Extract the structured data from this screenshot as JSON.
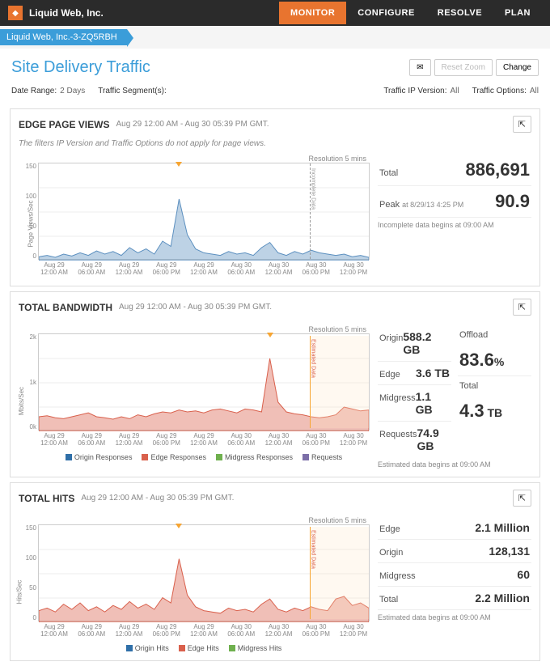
{
  "header": {
    "company": "Liquid Web, Inc.",
    "nav": [
      {
        "label": "MONITOR",
        "active": true
      },
      {
        "label": "CONFIGURE",
        "active": false
      },
      {
        "label": "RESOLVE",
        "active": false
      },
      {
        "label": "PLAN",
        "active": false
      }
    ]
  },
  "breadcrumb": "Liquid Web, Inc.-3-ZQ5RBH",
  "page": {
    "title": "Site Delivery Traffic",
    "buttons": {
      "mail": "✉",
      "reset": "Reset Zoom",
      "change": "Change"
    }
  },
  "filters": {
    "date_range_label": "Date Range:",
    "date_range": "2 Days",
    "segments_label": "Traffic Segment(s):",
    "segments": "",
    "ip_label": "Traffic IP Version:",
    "ip": "All",
    "opts_label": "Traffic Options:",
    "opts": "All"
  },
  "colors": {
    "accent": "#e8742f",
    "link": "#3b9dd9",
    "origin": "#2f6fa8",
    "edge": "#d9604c",
    "midgress": "#6fb04e",
    "requests": "#7c6fa8",
    "area_fill": "#d9604c",
    "area_fill_light": "rgba(217,96,76,0.35)",
    "pv_fill": "#5b8fbf",
    "grid": "#e5e5e5"
  },
  "panels": {
    "pv": {
      "title": "EDGE PAGE VIEWS",
      "range": "Aug 29 12:00 AM - Aug 30 05:39 PM GMT.",
      "note_pre": "The filters ",
      "note_em1": "IP Version",
      "note_mid": " and ",
      "note_em2": "Traffic Options",
      "note_post": " do not apply for page views.",
      "resolution": "Resolution 5 mins",
      "axis_y": "Page Views/Sec",
      "ylim": [
        0,
        150
      ],
      "yticks": [
        0,
        50,
        100,
        150
      ],
      "incomplete_label": "Incomplete Data",
      "stats": {
        "total_l": "Total",
        "total_v": "886,691",
        "peak_l": "Peak",
        "peak_at": "at 8/29/13 4:25 PM",
        "peak_v": "90.9",
        "note": "Incomplete data begins at 09:00 AM"
      },
      "series": [
        6,
        8,
        5,
        10,
        7,
        12,
        8,
        15,
        10,
        14,
        8,
        20,
        12,
        18,
        10,
        30,
        22,
        95,
        40,
        18,
        12,
        10,
        8,
        14,
        10,
        12,
        8,
        20,
        28,
        12,
        8,
        14,
        10,
        16,
        12,
        10,
        8,
        10,
        6,
        8,
        5
      ]
    },
    "bw": {
      "title": "TOTAL BANDWIDTH",
      "range": "Aug 29 12:00 AM - Aug 30 05:39 PM GMT.",
      "resolution": "Resolution 5 mins",
      "axis_y": "Mbits/Sec",
      "ylim": [
        0,
        2000
      ],
      "yticks": [
        "0k",
        "1k",
        "2k"
      ],
      "est_label": "Estimated Data",
      "legend": [
        {
          "l": "Origin Responses",
          "c": "#2f6fa8"
        },
        {
          "l": "Edge Responses",
          "c": "#d9604c"
        },
        {
          "l": "Midgress Responses",
          "c": "#6fb04e"
        },
        {
          "l": "Requests",
          "c": "#7c6fa8"
        }
      ],
      "stats": {
        "origin_l": "Origin",
        "origin_v": "588.2 GB",
        "offload_l": "Offload",
        "offload_v": "83.6",
        "offload_u": "%",
        "edge_l": "Edge",
        "edge_v": "3.6 TB",
        "mid_l": "Midgress",
        "mid_v": "1.1 GB",
        "total_l": "Total",
        "total_v": "4.3",
        "total_u": " TB",
        "req_l": "Requests",
        "req_v": "74.9 GB",
        "note": "Estimated data begins at 09:00 AM"
      },
      "series": [
        300,
        320,
        280,
        260,
        300,
        340,
        380,
        300,
        280,
        250,
        300,
        260,
        340,
        300,
        360,
        400,
        380,
        440,
        400,
        420,
        380,
        440,
        460,
        420,
        380,
        460,
        440,
        400,
        1500,
        600,
        400,
        360,
        340,
        300,
        280,
        300,
        340,
        500,
        460,
        420,
        440
      ]
    },
    "hits": {
      "title": "TOTAL HITS",
      "range": "Aug 29 12:00 AM - Aug 30 05:39 PM GMT.",
      "resolution": "Resolution 5 mins",
      "axis_y": "Hits/Sec",
      "ylim": [
        0,
        150
      ],
      "yticks": [
        0,
        50,
        100,
        150
      ],
      "est_label": "Estimated Data",
      "legend": [
        {
          "l": "Origin Hits",
          "c": "#2f6fa8"
        },
        {
          "l": "Edge Hits",
          "c": "#d9604c"
        },
        {
          "l": "Midgress Hits",
          "c": "#6fb04e"
        }
      ],
      "stats": {
        "edge_l": "Edge",
        "edge_v": "2.1 Million",
        "origin_l": "Origin",
        "origin_v": "128,131",
        "mid_l": "Midgress",
        "mid_v": "60",
        "total_l": "Total",
        "total_v": "2.2 Million",
        "note": "Estimated data begins at 09:00 AM"
      },
      "series": [
        18,
        22,
        16,
        28,
        20,
        30,
        18,
        24,
        16,
        26,
        20,
        32,
        22,
        28,
        20,
        38,
        30,
        98,
        42,
        24,
        18,
        16,
        14,
        22,
        18,
        20,
        16,
        28,
        36,
        20,
        16,
        22,
        18,
        24,
        20,
        18,
        36,
        40,
        26,
        30,
        22
      ]
    }
  },
  "xticks": [
    "Aug 29\n12:00 AM",
    "Aug 29\n06:00 AM",
    "Aug 29\n12:00 AM",
    "Aug 29\n06:00 PM",
    "Aug 29\n12:00 AM",
    "Aug 30\n06:00 AM",
    "Aug 30\n12:00 AM",
    "Aug 30\n06:00 PM",
    "Aug 30\n12:00 PM"
  ]
}
